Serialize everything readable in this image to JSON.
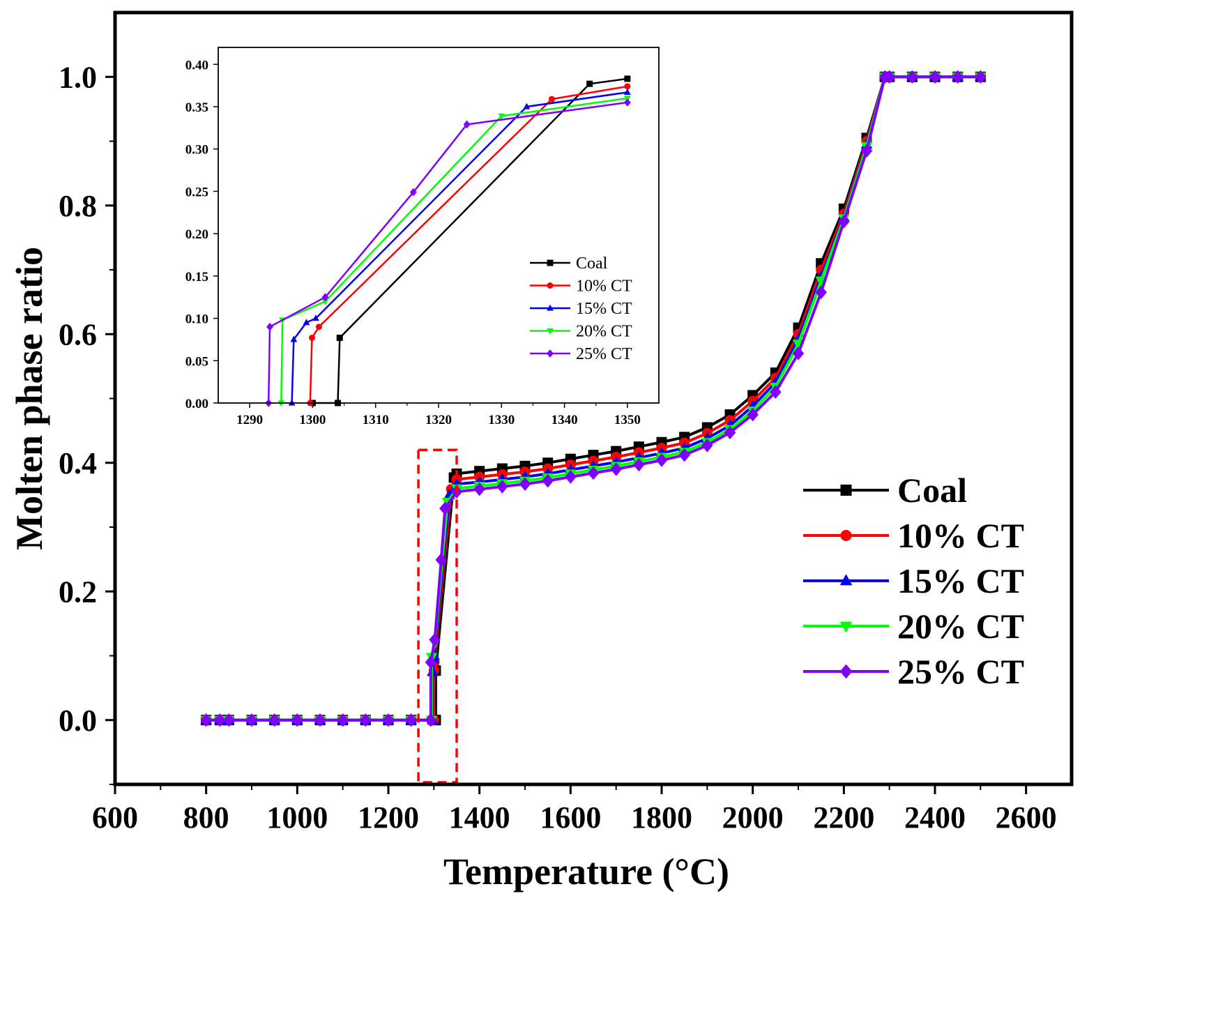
{
  "colors": {
    "Coal": "#000000",
    "10% CT": "#ff0000",
    "15% CT": "#0000ff",
    "20% CT": "#00ff00",
    "25% CT": "#7f00ff",
    "highlight": "#ff0000"
  },
  "chart_data": [
    {
      "id": "main",
      "type": "line",
      "title": "",
      "xlabel": "Temperature (°C)",
      "ylabel": "Molten phase ratio",
      "xlim": [
        600,
        2700
      ],
      "ylim": [
        -0.1,
        1.1
      ],
      "xticks": [
        "600",
        "800",
        "1000",
        "1200",
        "1400",
        "1600",
        "1800",
        "2000",
        "2200",
        "2400",
        "2600"
      ],
      "yticks": [
        "0.0",
        "0.2",
        "0.4",
        "0.6",
        "0.8",
        "1.0"
      ],
      "legend_position": "bottom-right",
      "highlight_box": {
        "x_range": [
          1266,
          1350
        ],
        "y_range": [
          -0.1,
          0.42
        ],
        "style": "dashed"
      },
      "series": [
        {
          "name": "Coal",
          "marker": "square",
          "x": [
            800,
            830,
            850,
            900,
            950,
            1000,
            1050,
            1100,
            1150,
            1200,
            1250,
            1300,
            1304,
            1304,
            1344,
            1350,
            1400,
            1450,
            1500,
            1550,
            1600,
            1650,
            1700,
            1750,
            1800,
            1850,
            1900,
            1950,
            2000,
            2050,
            2100,
            2150,
            2200,
            2250,
            2290,
            2300,
            2350,
            2400,
            2450,
            2500
          ],
          "y": [
            0,
            0,
            0,
            0,
            0,
            0,
            0,
            0,
            0,
            0,
            0,
            0,
            0,
            0.077,
            0.377,
            0.383,
            0.387,
            0.391,
            0.395,
            0.4,
            0.406,
            0.412,
            0.418,
            0.425,
            0.432,
            0.44,
            0.455,
            0.475,
            0.505,
            0.54,
            0.61,
            0.71,
            0.795,
            0.905,
            1.0,
            1.0,
            1.0,
            1.0,
            1.0,
            1.0
          ]
        },
        {
          "name": "10% CT",
          "marker": "circle",
          "x": [
            800,
            830,
            850,
            900,
            950,
            1000,
            1050,
            1100,
            1150,
            1200,
            1250,
            1299.8,
            1300,
            1301,
            1338,
            1350,
            1400,
            1450,
            1500,
            1550,
            1600,
            1650,
            1700,
            1750,
            1800,
            1850,
            1900,
            1950,
            2000,
            2050,
            2100,
            2150,
            2200,
            2250,
            2290,
            2300,
            2350,
            2400,
            2450,
            2500
          ],
          "y": [
            0,
            0,
            0,
            0,
            0,
            0,
            0,
            0,
            0,
            0,
            0,
            0,
            0.077,
            0.09,
            0.359,
            0.374,
            0.378,
            0.382,
            0.386,
            0.391,
            0.397,
            0.403,
            0.409,
            0.416,
            0.423,
            0.431,
            0.446,
            0.466,
            0.496,
            0.532,
            0.6,
            0.7,
            0.787,
            0.9,
            1.0,
            1.0,
            1.0,
            1.0,
            1.0,
            1.0
          ]
        },
        {
          "name": "15% CT",
          "marker": "triangle-up",
          "x": [
            800,
            830,
            850,
            900,
            950,
            1000,
            1050,
            1100,
            1150,
            1200,
            1250,
            1296.8,
            1297,
            1299,
            1300.5,
            1334,
            1350,
            1400,
            1450,
            1500,
            1550,
            1600,
            1650,
            1700,
            1750,
            1800,
            1850,
            1900,
            1950,
            2000,
            2050,
            2100,
            2150,
            2200,
            2250,
            2290,
            2300,
            2350,
            2400,
            2450,
            2500
          ],
          "y": [
            0,
            0,
            0,
            0,
            0,
            0,
            0,
            0,
            0,
            0,
            0,
            0,
            0.075,
            0.095,
            0.1,
            0.35,
            0.367,
            0.37,
            0.374,
            0.378,
            0.383,
            0.389,
            0.395,
            0.401,
            0.408,
            0.415,
            0.423,
            0.438,
            0.458,
            0.488,
            0.525,
            0.592,
            0.69,
            0.782,
            0.895,
            1.0,
            1.0,
            1.0,
            1.0,
            1.0,
            1.0
          ]
        },
        {
          "name": "20% CT",
          "marker": "triangle-down",
          "x": [
            800,
            830,
            850,
            900,
            950,
            1000,
            1050,
            1100,
            1150,
            1200,
            1250,
            1295,
            1295.2,
            1302,
            1330,
            1350,
            1400,
            1450,
            1500,
            1550,
            1600,
            1650,
            1700,
            1750,
            1800,
            1850,
            1900,
            1950,
            2000,
            2050,
            2100,
            2150,
            2200,
            2250,
            2290,
            2300,
            2350,
            2400,
            2450,
            2500
          ],
          "y": [
            0,
            0,
            0,
            0,
            0,
            0,
            0,
            0,
            0,
            0,
            0,
            0,
            0.098,
            0.12,
            0.339,
            0.36,
            0.364,
            0.368,
            0.372,
            0.377,
            0.383,
            0.389,
            0.395,
            0.402,
            0.409,
            0.417,
            0.432,
            0.452,
            0.481,
            0.518,
            0.585,
            0.683,
            0.78,
            0.892,
            1.0,
            1.0,
            1.0,
            1.0,
            1.0,
            1.0
          ]
        },
        {
          "name": "25% CT",
          "marker": "diamond",
          "x": [
            800,
            830,
            850,
            900,
            950,
            1000,
            1050,
            1100,
            1150,
            1200,
            1250,
            1293,
            1293.2,
            1302,
            1316,
            1324.5,
            1350,
            1400,
            1450,
            1500,
            1550,
            1600,
            1650,
            1700,
            1750,
            1800,
            1850,
            1900,
            1950,
            2000,
            2050,
            2100,
            2150,
            2200,
            2250,
            2290,
            2300,
            2350,
            2400,
            2450,
            2500
          ],
          "y": [
            0,
            0,
            0,
            0,
            0,
            0,
            0,
            0,
            0,
            0,
            0,
            0,
            0.09,
            0.125,
            0.249,
            0.329,
            0.355,
            0.359,
            0.363,
            0.367,
            0.372,
            0.378,
            0.384,
            0.39,
            0.397,
            0.404,
            0.412,
            0.427,
            0.447,
            0.475,
            0.51,
            0.57,
            0.665,
            0.775,
            0.885,
            1.0,
            1.0,
            1.0,
            1.0,
            1.0,
            1.0
          ]
        }
      ]
    },
    {
      "id": "inset",
      "type": "line",
      "title": "",
      "xlabel": "",
      "ylabel": "",
      "xlim": [
        1285,
        1355
      ],
      "ylim": [
        0.0,
        0.42
      ],
      "xticks": [
        "1290",
        "1300",
        "1310",
        "1320",
        "1330",
        "1340",
        "1350"
      ],
      "yticks": [
        "0.00",
        "0.05",
        "0.10",
        "0.15",
        "0.20",
        "0.25",
        "0.30",
        "0.35",
        "0.40"
      ],
      "legend_position": "center-right",
      "series": [
        {
          "name": "Coal",
          "marker": "square",
          "x": [
            1300,
            1304,
            1304.3,
            1344,
            1350
          ],
          "y": [
            0,
            0,
            0.077,
            0.377,
            0.383
          ]
        },
        {
          "name": "10% CT",
          "marker": "circle",
          "x": [
            1299.6,
            1299.9,
            1301,
            1338,
            1350
          ],
          "y": [
            0,
            0.077,
            0.09,
            0.359,
            0.374
          ]
        },
        {
          "name": "15% CT",
          "marker": "triangle-up",
          "x": [
            1296.7,
            1297,
            1299,
            1300.5,
            1334,
            1350
          ],
          "y": [
            0,
            0.075,
            0.095,
            0.1,
            0.35,
            0.367
          ]
        },
        {
          "name": "20% CT",
          "marker": "triangle-down",
          "x": [
            1295,
            1295.2,
            1302,
            1330,
            1350
          ],
          "y": [
            0,
            0.098,
            0.12,
            0.339,
            0.36
          ]
        },
        {
          "name": "25% CT",
          "marker": "diamond",
          "x": [
            1293,
            1293.2,
            1302,
            1316,
            1324.5,
            1350
          ],
          "y": [
            0,
            0.09,
            0.125,
            0.249,
            0.329,
            0.355
          ]
        }
      ]
    }
  ]
}
